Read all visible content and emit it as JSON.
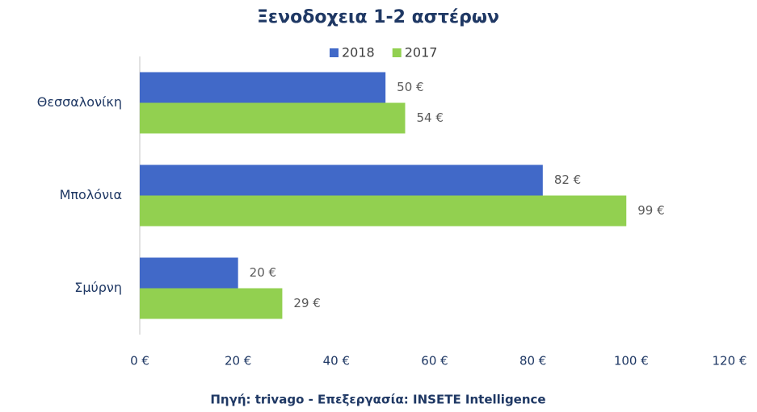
{
  "chart_data": {
    "type": "hbar",
    "title": "Ξενοδοχεια 1-2 αστέρων",
    "source": "Πηγή: trivago - Επεξεργασία: INSETE Intelligence",
    "categories": [
      "Θεσσαλονίκη",
      "Μπολόνια",
      "Σμύρνη"
    ],
    "series": [
      {
        "name": "2018",
        "color": "#4169c8",
        "values": [
          50,
          82,
          20
        ],
        "value_labels": [
          "50 €",
          "82 €",
          "20 €"
        ]
      },
      {
        "name": "2017",
        "color": "#92d050",
        "values": [
          54,
          99,
          29
        ],
        "value_labels": [
          "54 €",
          "99 €",
          "29 €"
        ]
      }
    ],
    "xlim": [
      0,
      120
    ],
    "xticks": [
      {
        "value": 0,
        "label": "0 €"
      },
      {
        "value": 20,
        "label": "20 €"
      },
      {
        "value": 40,
        "label": "40 €"
      },
      {
        "value": 60,
        "label": "60 €"
      },
      {
        "value": 80,
        "label": "80 €"
      },
      {
        "value": 100,
        "label": "100 €"
      },
      {
        "value": 120,
        "label": "120 €"
      }
    ],
    "legend": "top"
  }
}
